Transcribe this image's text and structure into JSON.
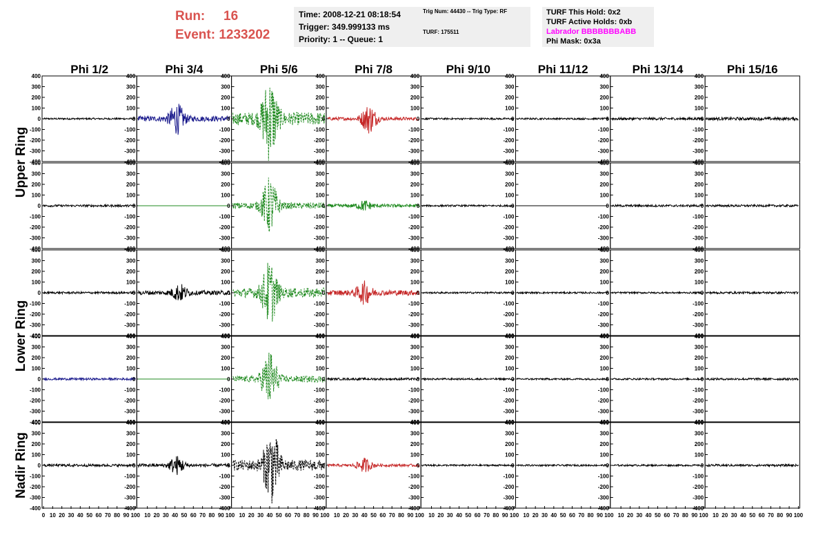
{
  "header": {
    "run_label": "Run:",
    "run_value": "16",
    "event_label": "Event:",
    "event_value": "1233202"
  },
  "info_time": {
    "time": "Time: 2008-12-21 08:18:54",
    "trigger": "Trigger: 349.999133 ms",
    "priority": "Priority: 1 -- Queue: 1"
  },
  "info_trig": {
    "trig": "Trig Num: 44430 -- Trig Type: RF",
    "turf": "TURF: 175511"
  },
  "info_turf": {
    "this_hold": "TURF This Hold: 0x2",
    "active_holds": "TURF Active Holds: 0xb",
    "labrador": "Labrador BBBBBBBABB",
    "phi_mask": "Phi Mask: 0x3a"
  },
  "colors": {
    "header_red": "#d9534f",
    "info_bg": "#efefef",
    "labrador_magenta": "#ff00ff",
    "blue": "#1a1a8c",
    "green": "#1f8a1f",
    "red": "#c62828",
    "black": "#000000"
  },
  "chart_data": {
    "type": "line",
    "columns": [
      "Phi 1/2",
      "Phi 3/4",
      "Phi 5/6",
      "Phi 7/8",
      "Phi 9/10",
      "Phi 11/12",
      "Phi 13/14",
      "Phi 15/16"
    ],
    "row_labels": [
      "Upper Ring",
      "Lower Ring",
      "Nadir Ring"
    ],
    "ylim": [
      -400,
      400
    ],
    "y_ticks": [
      400,
      300,
      200,
      100,
      0,
      -100,
      -200,
      -300,
      -400
    ],
    "xlim": [
      0,
      100
    ],
    "x_tick_labels": [
      "0",
      "10",
      "20",
      "30",
      "40",
      "50",
      "60",
      "70",
      "80",
      "90",
      "100"
    ],
    "panel_rows": [
      [
        {
          "color": "black",
          "amp": 8,
          "peak_x": null,
          "peak_amp": 0,
          "dashed": false
        },
        {
          "color": "blue",
          "amp": 25,
          "peak_x": 42,
          "peak_amp": 130,
          "dashed": false
        },
        {
          "color": "green",
          "amp": 60,
          "peak_x": 40,
          "peak_amp": 360,
          "dashed": true
        },
        {
          "color": "red",
          "amp": 15,
          "peak_x": 45,
          "peak_amp": 130,
          "dashed": false
        },
        {
          "color": "black",
          "amp": 8,
          "peak_x": null,
          "peak_amp": 0,
          "dashed": false
        },
        {
          "color": "black",
          "amp": 8,
          "peak_x": null,
          "peak_amp": 0,
          "dashed": false
        },
        {
          "color": "black",
          "amp": 12,
          "peak_x": null,
          "peak_amp": 0,
          "dashed": false
        },
        {
          "color": "black",
          "amp": 14,
          "peak_x": null,
          "peak_amp": 0,
          "dashed": false
        }
      ],
      [
        {
          "color": "black",
          "amp": 10,
          "peak_x": null,
          "peak_amp": 0,
          "dashed": false
        },
        {
          "color": "green",
          "amp": 0,
          "peak_x": null,
          "peak_amp": 0,
          "dashed": false
        },
        {
          "color": "green",
          "amp": 30,
          "peak_x": 40,
          "peak_amp": 250,
          "dashed": true
        },
        {
          "color": "green",
          "amp": 15,
          "peak_x": 40,
          "peak_amp": 40,
          "dashed": false
        },
        {
          "color": "black",
          "amp": 8,
          "peak_x": null,
          "peak_amp": 0,
          "dashed": false
        },
        {
          "color": "black",
          "amp": 0,
          "peak_x": null,
          "peak_amp": 0,
          "dashed": false
        },
        {
          "color": "black",
          "amp": 10,
          "peak_x": null,
          "peak_amp": 0,
          "dashed": false
        },
        {
          "color": "black",
          "amp": 10,
          "peak_x": null,
          "peak_amp": 0,
          "dashed": false
        }
      ],
      [
        {
          "color": "black",
          "amp": 10,
          "peak_x": null,
          "peak_amp": 0,
          "dashed": false
        },
        {
          "color": "black",
          "amp": 20,
          "peak_x": 45,
          "peak_amp": 70,
          "dashed": false
        },
        {
          "color": "green",
          "amp": 45,
          "peak_x": 40,
          "peak_amp": 270,
          "dashed": true
        },
        {
          "color": "red",
          "amp": 25,
          "peak_x": 40,
          "peak_amp": 90,
          "dashed": false
        },
        {
          "color": "black",
          "amp": 8,
          "peak_x": null,
          "peak_amp": 0,
          "dashed": false
        },
        {
          "color": "black",
          "amp": 8,
          "peak_x": null,
          "peak_amp": 0,
          "dashed": false
        },
        {
          "color": "black",
          "amp": 8,
          "peak_x": null,
          "peak_amp": 0,
          "dashed": false
        },
        {
          "color": "black",
          "amp": 10,
          "peak_x": null,
          "peak_amp": 0,
          "dashed": false
        }
      ],
      [
        {
          "color": "blue",
          "amp": 10,
          "peak_x": null,
          "peak_amp": 0,
          "dashed": false
        },
        {
          "color": "green",
          "amp": 0,
          "peak_x": null,
          "peak_amp": 0,
          "dashed": false
        },
        {
          "color": "green",
          "amp": 30,
          "peak_x": 40,
          "peak_amp": 250,
          "dashed": true
        },
        {
          "color": "black",
          "amp": 10,
          "peak_x": null,
          "peak_amp": 0,
          "dashed": false
        },
        {
          "color": "black",
          "amp": 8,
          "peak_x": null,
          "peak_amp": 0,
          "dashed": false
        },
        {
          "color": "black",
          "amp": 8,
          "peak_x": null,
          "peak_amp": 0,
          "dashed": false
        },
        {
          "color": "black",
          "amp": 8,
          "peak_x": null,
          "peak_amp": 0,
          "dashed": false
        },
        {
          "color": "black",
          "amp": 10,
          "peak_x": null,
          "peak_amp": 0,
          "dashed": false
        }
      ],
      [
        {
          "color": "black",
          "amp": 12,
          "peak_x": null,
          "peak_amp": 0,
          "dashed": false
        },
        {
          "color": "black",
          "amp": 15,
          "peak_x": 42,
          "peak_amp": 80,
          "dashed": false
        },
        {
          "color": "black",
          "amp": 50,
          "peak_x": 42,
          "peak_amp": 320,
          "dashed": true
        },
        {
          "color": "red",
          "amp": 12,
          "peak_x": 40,
          "peak_amp": 60,
          "dashed": false
        },
        {
          "color": "black",
          "amp": 8,
          "peak_x": null,
          "peak_amp": 0,
          "dashed": false
        },
        {
          "color": "black",
          "amp": 8,
          "peak_x": null,
          "peak_amp": 0,
          "dashed": false
        },
        {
          "color": "black",
          "amp": 8,
          "peak_x": null,
          "peak_amp": 0,
          "dashed": false
        },
        {
          "color": "black",
          "amp": 10,
          "peak_x": null,
          "peak_amp": 0,
          "dashed": false
        }
      ]
    ]
  }
}
